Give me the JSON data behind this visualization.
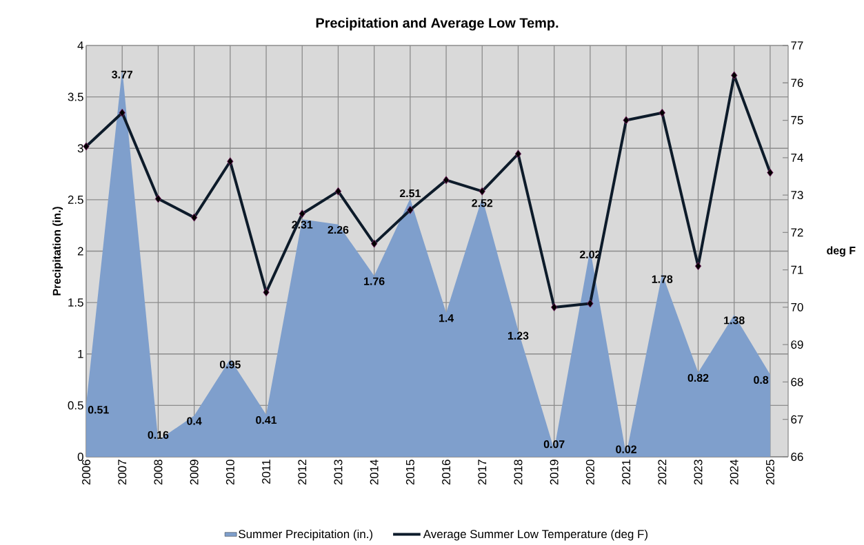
{
  "chart_data": {
    "type": "area",
    "title": "Precipitation and Average Low Temp.",
    "ylabel": "Precipitation (in.)",
    "y2label": "deg F",
    "categories": [
      "2006",
      "2007",
      "2008",
      "2009",
      "2010",
      "2011",
      "2012",
      "2013",
      "2014",
      "2015",
      "2016",
      "2017",
      "2018",
      "2019",
      "2020",
      "2021",
      "2022",
      "2023",
      "2024",
      "2025"
    ],
    "series": [
      {
        "name": "Summer Precipitation (in.)",
        "color": "#7f9fcc",
        "values": [
          0.51,
          3.77,
          0.16,
          0.4,
          0.95,
          0.41,
          2.31,
          2.26,
          1.76,
          2.51,
          1.4,
          2.52,
          1.23,
          0.07,
          2.02,
          0.02,
          1.78,
          0.82,
          1.38,
          0.8
        ],
        "value_labels": [
          "0.51",
          "3.77",
          "0.16",
          "0.4",
          "0.95",
          "0.41",
          "2.31",
          "2.26",
          "1.76",
          "2.51",
          "1.4",
          "2.52",
          "1.23",
          "0.07",
          "2.02",
          "0.02",
          "1.78",
          "0.82",
          "1.38",
          "0.8"
        ]
      },
      {
        "name": "Average Summer Low Temperature (deg F)",
        "type": "line",
        "axis": "y2",
        "color": "#0d1b2a",
        "marker": "diamond",
        "values": [
          74.3,
          75.2,
          72.9,
          72.4,
          73.9,
          70.4,
          72.5,
          73.1,
          71.7,
          72.6,
          73.4,
          73.1,
          74.1,
          70.0,
          70.1,
          75.0,
          75.2,
          71.1,
          76.2,
          73.6
        ]
      }
    ],
    "ylim": [
      0,
      4
    ],
    "yticks": [
      0,
      0.5,
      1,
      1.5,
      2,
      2.5,
      3,
      3.5,
      4
    ],
    "y2lim": [
      66,
      77
    ],
    "y2ticks": [
      66,
      67,
      68,
      69,
      70,
      71,
      72,
      73,
      74,
      75,
      76,
      77
    ],
    "grid": true,
    "legend": "bottom"
  }
}
